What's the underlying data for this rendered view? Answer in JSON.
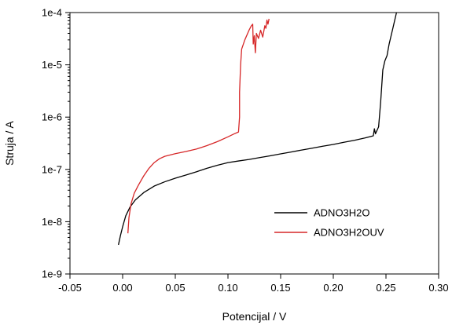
{
  "chart_data": {
    "type": "line",
    "title": "",
    "xlabel": "Potencijal / V",
    "ylabel": "Struja / A",
    "xlim": [
      -0.05,
      0.3
    ],
    "ylim": [
      1e-09,
      0.0001
    ],
    "yscale": "log",
    "grid": false,
    "legend_position": "lower-right",
    "x_ticks": [
      -0.05,
      0.0,
      0.05,
      0.1,
      0.15,
      0.2,
      0.25,
      0.3
    ],
    "x_tick_labels": [
      "-0.05",
      "0.00",
      "0.05",
      "0.10",
      "0.15",
      "0.20",
      "0.25",
      "0.30"
    ],
    "y_ticks": [
      1e-09,
      1e-08,
      1e-07,
      1e-06,
      1e-05,
      0.0001
    ],
    "y_tick_labels": [
      "1e-9",
      "1e-8",
      "1e-7",
      "1e-6",
      "1e-5",
      "1e-4"
    ],
    "series": [
      {
        "name": "ADNO3H2O",
        "color": "#000000",
        "points": [
          [
            -0.004,
            3.6e-09
          ],
          [
            -0.002,
            5.5e-09
          ],
          [
            0.0,
            8e-09
          ],
          [
            0.003,
            1.3e-08
          ],
          [
            0.007,
            1.9e-08
          ],
          [
            0.012,
            2.6e-08
          ],
          [
            0.02,
            3.6e-08
          ],
          [
            0.03,
            4.8e-08
          ],
          [
            0.04,
            5.8e-08
          ],
          [
            0.05,
            6.8e-08
          ],
          [
            0.06,
            7.8e-08
          ],
          [
            0.07,
            9e-08
          ],
          [
            0.08,
            1.05e-07
          ],
          [
            0.09,
            1.2e-07
          ],
          [
            0.1,
            1.35e-07
          ],
          [
            0.11,
            1.45e-07
          ],
          [
            0.12,
            1.55e-07
          ],
          [
            0.13,
            1.68e-07
          ],
          [
            0.14,
            1.82e-07
          ],
          [
            0.15,
            1.98e-07
          ],
          [
            0.16,
            2.15e-07
          ],
          [
            0.17,
            2.35e-07
          ],
          [
            0.18,
            2.55e-07
          ],
          [
            0.19,
            2.78e-07
          ],
          [
            0.2,
            3e-07
          ],
          [
            0.21,
            3.3e-07
          ],
          [
            0.22,
            3.6e-07
          ],
          [
            0.23,
            4e-07
          ],
          [
            0.238,
            4.4e-07
          ],
          [
            0.239,
            6e-07
          ],
          [
            0.24,
            4.8e-07
          ],
          [
            0.243,
            6.5e-07
          ],
          [
            0.245,
            2e-06
          ],
          [
            0.247,
            8e-06
          ],
          [
            0.249,
            1.2e-05
          ],
          [
            0.251,
            1.5e-05
          ],
          [
            0.253,
            2.5e-05
          ],
          [
            0.256,
            4.5e-05
          ],
          [
            0.26,
            0.0001
          ]
        ]
      },
      {
        "name": "ADNO3H2OUV",
        "color": "#d62728",
        "points": [
          [
            0.005,
            6e-09
          ],
          [
            0.006,
            1.2e-08
          ],
          [
            0.008,
            2.2e-08
          ],
          [
            0.011,
            3.5e-08
          ],
          [
            0.015,
            5e-08
          ],
          [
            0.02,
            7.5e-08
          ],
          [
            0.025,
            1.05e-07
          ],
          [
            0.03,
            1.35e-07
          ],
          [
            0.035,
            1.6e-07
          ],
          [
            0.04,
            1.78e-07
          ],
          [
            0.05,
            2e-07
          ],
          [
            0.06,
            2.2e-07
          ],
          [
            0.07,
            2.45e-07
          ],
          [
            0.08,
            2.85e-07
          ],
          [
            0.09,
            3.4e-07
          ],
          [
            0.1,
            4.2e-07
          ],
          [
            0.105,
            4.7e-07
          ],
          [
            0.11,
            5.2e-07
          ],
          [
            0.111,
            1e-06
          ],
          [
            0.111,
            3e-06
          ],
          [
            0.112,
            1e-05
          ],
          [
            0.113,
            2e-05
          ],
          [
            0.116,
            3e-05
          ],
          [
            0.12,
            4.6e-05
          ],
          [
            0.122,
            5.5e-05
          ],
          [
            0.1235,
            6e-05
          ],
          [
            0.124,
            2.5e-05
          ],
          [
            0.125,
            3.6e-05
          ],
          [
            0.126,
            1.7e-05
          ],
          [
            0.127,
            4e-05
          ],
          [
            0.129,
            3.2e-05
          ],
          [
            0.131,
            4.6e-05
          ],
          [
            0.133,
            3.4e-05
          ],
          [
            0.135,
            5.6e-05
          ],
          [
            0.136,
            5e-05
          ],
          [
            0.137,
            7.2e-05
          ],
          [
            0.138,
            6e-05
          ],
          [
            0.139,
            7.6e-05
          ]
        ]
      }
    ]
  }
}
